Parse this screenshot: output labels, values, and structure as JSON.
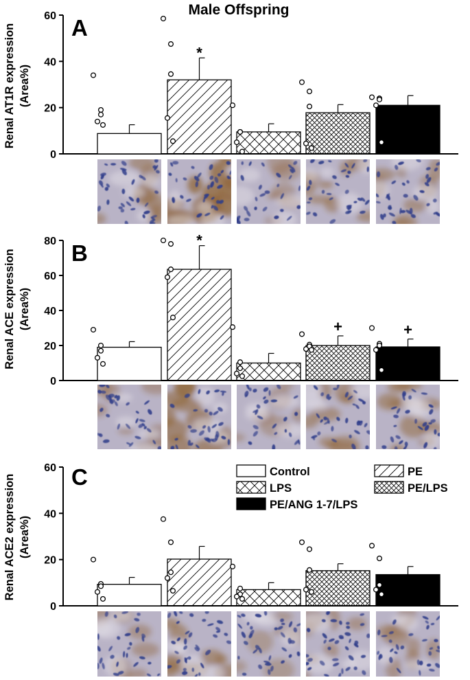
{
  "figure_title": "Male Offspring",
  "colors": {
    "axis": "#000000",
    "bar_fill": "#ffffff",
    "solid_fill": "#000000",
    "hatch": "#000000",
    "micrograph_base": "#b9b3c6",
    "nucleus": "#2f3d8a",
    "brown_stain": "#8a5a22"
  },
  "legend": [
    {
      "label": "Control",
      "pattern": "none"
    },
    {
      "label": "PE",
      "pattern": "diagonal"
    },
    {
      "label": "LPS",
      "pattern": "cross-coarse"
    },
    {
      "label": "PE/LPS",
      "pattern": "cross-fine"
    },
    {
      "label": "PE/ANG 1-7/LPS",
      "pattern": "solid"
    }
  ],
  "chart_data": [
    {
      "type": "bar",
      "panel_letter": "A",
      "ylabel": [
        "Renal AT1R expression",
        "(Area%)"
      ],
      "categories": [
        "Control",
        "PE",
        "LPS",
        "PE/LPS",
        "PE/ANG 1-7/LPS"
      ],
      "values": [
        8.8,
        32.0,
        9.5,
        17.8,
        21.0
      ],
      "errors": [
        3.8,
        9.5,
        3.5,
        3.5,
        4.2
      ],
      "points": [
        [
          34,
          19,
          17,
          14,
          12.5
        ],
        [
          58.5,
          47.5,
          34.5,
          15.5,
          5.5
        ],
        [
          21,
          9.5,
          9.5,
          5,
          1
        ],
        [
          31,
          27,
          20.5,
          4.5,
          2.5
        ],
        [
          24.5,
          24,
          23.5,
          21,
          5
        ]
      ],
      "markers": [
        "",
        "*",
        "",
        "",
        ""
      ],
      "ylim": [
        0,
        60
      ],
      "yticks": [
        0,
        20,
        40,
        60
      ],
      "grid": false,
      "legend": "none"
    },
    {
      "type": "bar",
      "panel_letter": "B",
      "ylabel": [
        "Renal ACE expression",
        "(Area%)"
      ],
      "categories": [
        "Control",
        "PE",
        "LPS",
        "PE/LPS",
        "PE/ANG 1-7/LPS"
      ],
      "values": [
        19.0,
        63.5,
        10.0,
        20.0,
        19.2
      ],
      "errors": [
        3.2,
        13.5,
        5.5,
        5.5,
        4.5
      ],
      "points": [
        [
          29,
          20,
          17,
          13,
          9.5
        ],
        [
          80,
          78,
          63.5,
          59,
          36
        ],
        [
          30.5,
          10.5,
          7,
          4,
          2.5
        ],
        [
          26.5,
          20.5,
          19.5,
          18,
          17.5
        ],
        [
          30,
          21,
          20,
          17.5,
          6
        ]
      ],
      "markers": [
        "",
        "*",
        "",
        "+",
        "+"
      ],
      "ylim": [
        0,
        80
      ],
      "yticks": [
        0,
        20,
        40,
        60,
        80
      ],
      "grid": false,
      "legend": "none"
    },
    {
      "type": "bar",
      "panel_letter": "C",
      "ylabel": [
        "Renal ACE2 expression",
        "(Area%)"
      ],
      "categories": [
        "Control",
        "PE",
        "LPS",
        "PE/LPS",
        "PE/ANG 1-7/LPS"
      ],
      "values": [
        9.3,
        20.2,
        7.0,
        15.2,
        13.5
      ],
      "errors": [
        3.0,
        5.5,
        3.0,
        3.0,
        3.5
      ],
      "points": [
        [
          20,
          9.5,
          8.5,
          6,
          3
        ],
        [
          37.5,
          27.5,
          14.5,
          12,
          6.5
        ],
        [
          17,
          7.5,
          5,
          4,
          3
        ],
        [
          27.5,
          24.5,
          15.5,
          7,
          6
        ],
        [
          26,
          20.5,
          9,
          7,
          5
        ]
      ],
      "markers": [
        "",
        "",
        "",
        "",
        ""
      ],
      "ylim": [
        0,
        60
      ],
      "yticks": [
        0,
        20,
        40,
        60
      ],
      "grid": false,
      "legend": "top-right"
    }
  ]
}
